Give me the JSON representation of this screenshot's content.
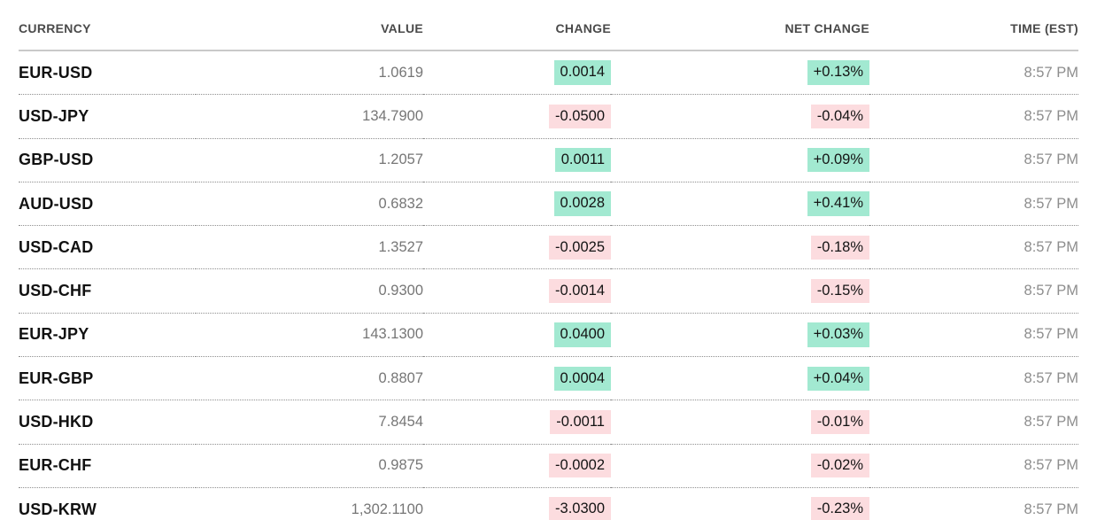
{
  "table": {
    "columns": [
      {
        "label": "CURRENCY"
      },
      {
        "label": "VALUE"
      },
      {
        "label": "CHANGE"
      },
      {
        "label": "NET CHANGE"
      },
      {
        "label": "TIME (EST)"
      }
    ],
    "rows": [
      {
        "pair": "EUR-USD",
        "value": "1.0619",
        "change": "0.0014",
        "net_change": "+0.13%",
        "time": "8:57 PM",
        "direction": "up"
      },
      {
        "pair": "USD-JPY",
        "value": "134.7900",
        "change": "-0.0500",
        "net_change": "-0.04%",
        "time": "8:57 PM",
        "direction": "down"
      },
      {
        "pair": "GBP-USD",
        "value": "1.2057",
        "change": "0.0011",
        "net_change": "+0.09%",
        "time": "8:57 PM",
        "direction": "up"
      },
      {
        "pair": "AUD-USD",
        "value": "0.6832",
        "change": "0.0028",
        "net_change": "+0.41%",
        "time": "8:57 PM",
        "direction": "up"
      },
      {
        "pair": "USD-CAD",
        "value": "1.3527",
        "change": "-0.0025",
        "net_change": "-0.18%",
        "time": "8:57 PM",
        "direction": "down"
      },
      {
        "pair": "USD-CHF",
        "value": "0.9300",
        "change": "-0.0014",
        "net_change": "-0.15%",
        "time": "8:57 PM",
        "direction": "down"
      },
      {
        "pair": "EUR-JPY",
        "value": "143.1300",
        "change": "0.0400",
        "net_change": "+0.03%",
        "time": "8:57 PM",
        "direction": "up"
      },
      {
        "pair": "EUR-GBP",
        "value": "0.8807",
        "change": "0.0004",
        "net_change": "+0.04%",
        "time": "8:57 PM",
        "direction": "up"
      },
      {
        "pair": "USD-HKD",
        "value": "7.8454",
        "change": "-0.0011",
        "net_change": "-0.01%",
        "time": "8:57 PM",
        "direction": "down"
      },
      {
        "pair": "EUR-CHF",
        "value": "0.9875",
        "change": "-0.0002",
        "net_change": "-0.02%",
        "time": "8:57 PM",
        "direction": "down"
      },
      {
        "pair": "USD-KRW",
        "value": "1,302.1100",
        "change": "-3.0300",
        "net_change": "-0.23%",
        "time": "8:57 PM",
        "direction": "down"
      }
    ]
  },
  "colors": {
    "positive_bg": "#a2e9d1",
    "negative_bg": "#fcdcdf",
    "header_text": "#4a4a4a",
    "pair_text": "#111111",
    "value_text": "#767676",
    "time_text": "#8d8d8d",
    "header_rule": "#c9c9c9",
    "row_rule": "#8f8f8f"
  }
}
